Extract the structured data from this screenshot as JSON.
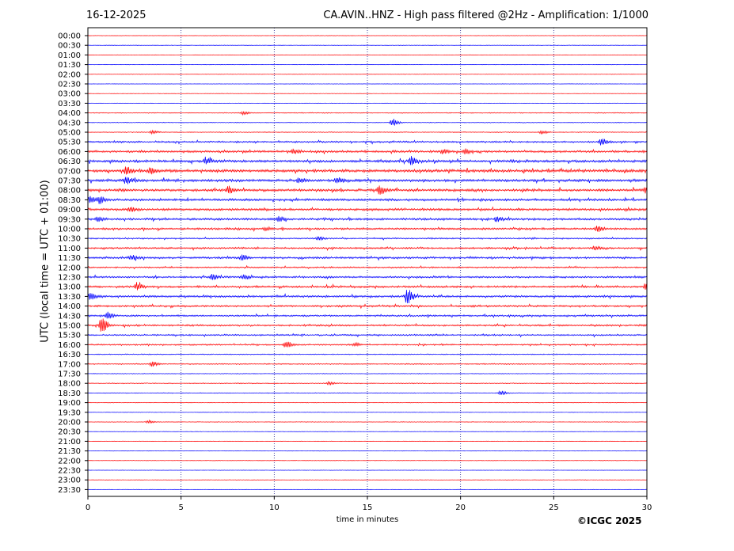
{
  "header": {
    "date": "16-12-2025",
    "title": "CA.AVIN..HNZ - High pass filtered @2Hz - Amplification: 1/1000"
  },
  "footer": {
    "copyright": "©ICGC 2025"
  },
  "colors": {
    "odd_trace": "#ff0000",
    "even_trace": "#0000ff",
    "axes": "#000000"
  },
  "chart_data": {
    "type": "line",
    "title": "CA.AVIN..HNZ - High pass filtered @2Hz - Amplification: 1/1000",
    "xlabel": "time in minutes",
    "ylabel": "UTC (local time = UTC + 01:00)",
    "xlim": [
      0,
      30
    ],
    "x_ticks": [
      0,
      5,
      10,
      15,
      20,
      25,
      30
    ],
    "grid": "vertical dotted at each x tick",
    "rows": [
      "00:00",
      "00:30",
      "01:00",
      "01:30",
      "02:00",
      "02:30",
      "03:00",
      "03:30",
      "04:00",
      "04:30",
      "05:00",
      "05:30",
      "06:00",
      "06:30",
      "07:00",
      "07:30",
      "08:00",
      "08:30",
      "09:00",
      "09:30",
      "10:00",
      "10:30",
      "11:00",
      "11:30",
      "12:00",
      "12:30",
      "13:00",
      "13:30",
      "14:00",
      "14:30",
      "15:00",
      "15:30",
      "16:00",
      "16:30",
      "17:00",
      "17:30",
      "18:00",
      "18:30",
      "19:00",
      "19:30",
      "20:00",
      "20:30",
      "21:00",
      "21:30",
      "22:00",
      "22:30",
      "23:00",
      "23:30"
    ],
    "row_colors": "alternating red (00:00) and blue (00:30)",
    "noise_level": [
      0.3,
      0.3,
      0.3,
      0.3,
      0.3,
      0.3,
      0.3,
      0.3,
      0.6,
      0.5,
      0.6,
      1.2,
      1.5,
      1.8,
      2.0,
      1.8,
      1.8,
      1.6,
      1.6,
      1.5,
      1.4,
      1.0,
      1.2,
      1.4,
      1.0,
      1.3,
      1.4,
      1.4,
      1.3,
      1.2,
      1.2,
      1.1,
      1.0,
      0.7,
      0.8,
      0.5,
      0.6,
      0.5,
      0.4,
      0.3,
      0.4,
      0.3,
      0.3,
      0.3,
      0.3,
      0.3,
      0.3,
      0.3
    ],
    "events": [
      {
        "row": "04:00",
        "t": 8.3,
        "amp": 2
      },
      {
        "row": "04:30",
        "t": 16.3,
        "amp": 5
      },
      {
        "row": "05:00",
        "t": 3.4,
        "amp": 2
      },
      {
        "row": "05:00",
        "t": 24.3,
        "amp": 2
      },
      {
        "row": "05:30",
        "t": 27.5,
        "amp": 5
      },
      {
        "row": "06:00",
        "t": 11.0,
        "amp": 3
      },
      {
        "row": "06:00",
        "t": 19.0,
        "amp": 3
      },
      {
        "row": "06:00",
        "t": 20.2,
        "amp": 3
      },
      {
        "row": "06:30",
        "t": 6.3,
        "amp": 4
      },
      {
        "row": "06:30",
        "t": 17.3,
        "amp": 5
      },
      {
        "row": "07:00",
        "t": 2.0,
        "amp": 4
      },
      {
        "row": "07:00",
        "t": 3.3,
        "amp": 4
      },
      {
        "row": "07:30",
        "t": 2.0,
        "amp": 4
      },
      {
        "row": "07:30",
        "t": 11.3,
        "amp": 3
      },
      {
        "row": "07:30",
        "t": 13.3,
        "amp": 4
      },
      {
        "row": "08:00",
        "t": 7.5,
        "amp": 4
      },
      {
        "row": "08:00",
        "t": 15.6,
        "amp": 5
      },
      {
        "row": "08:00",
        "t": 29.9,
        "amp": 4
      },
      {
        "row": "08:30",
        "t": 0.1,
        "amp": 4
      },
      {
        "row": "08:30",
        "t": 0.6,
        "amp": 4
      },
      {
        "row": "09:00",
        "t": 2.2,
        "amp": 3
      },
      {
        "row": "09:30",
        "t": 0.5,
        "amp": 3
      },
      {
        "row": "09:30",
        "t": 10.2,
        "amp": 3
      },
      {
        "row": "09:30",
        "t": 21.9,
        "amp": 3
      },
      {
        "row": "10:00",
        "t": 27.3,
        "amp": 4
      },
      {
        "row": "10:00",
        "t": 9.5,
        "amp": 2
      },
      {
        "row": "10:30",
        "t": 12.3,
        "amp": 2
      },
      {
        "row": "11:00",
        "t": 27.2,
        "amp": 2
      },
      {
        "row": "11:30",
        "t": 2.3,
        "amp": 3
      },
      {
        "row": "11:30",
        "t": 8.2,
        "amp": 3
      },
      {
        "row": "12:30",
        "t": 6.6,
        "amp": 3
      },
      {
        "row": "12:30",
        "t": 8.3,
        "amp": 3
      },
      {
        "row": "13:00",
        "t": 2.6,
        "amp": 4
      },
      {
        "row": "13:00",
        "t": 29.9,
        "amp": 6
      },
      {
        "row": "13:30",
        "t": 0.1,
        "amp": 4
      },
      {
        "row": "13:30",
        "t": 17.1,
        "amp": 10
      },
      {
        "row": "14:30",
        "t": 1.0,
        "amp": 5
      },
      {
        "row": "15:00",
        "t": 0.7,
        "amp": 10
      },
      {
        "row": "16:00",
        "t": 10.6,
        "amp": 4
      },
      {
        "row": "16:00",
        "t": 14.3,
        "amp": 2
      },
      {
        "row": "17:00",
        "t": 3.4,
        "amp": 3
      },
      {
        "row": "18:00",
        "t": 12.9,
        "amp": 2
      },
      {
        "row": "18:30",
        "t": 22.1,
        "amp": 3
      },
      {
        "row": "20:00",
        "t": 3.2,
        "amp": 2
      }
    ]
  }
}
